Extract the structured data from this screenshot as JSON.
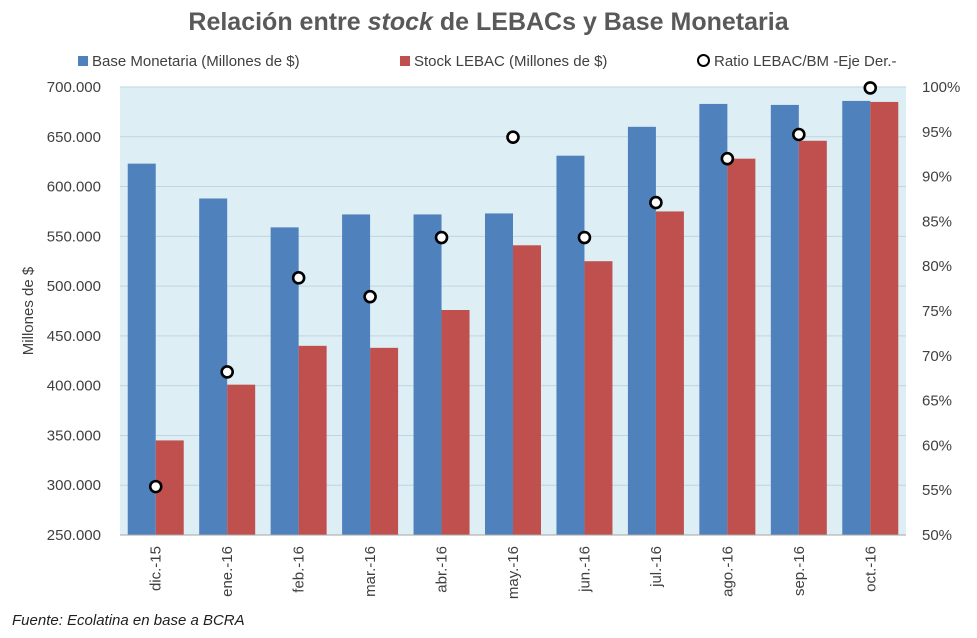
{
  "title": {
    "pre": "Relación entre ",
    "em": "stock",
    "post": " de LEBACs y Base Monetaria"
  },
  "legend": {
    "bm": "Base Monetaria (Millones de $)",
    "lebac": "Stock LEBAC (Millones de $)",
    "ratio": "Ratio LEBAC/BM -Eje Der.-"
  },
  "source": "Fuente: Ecolatina en base a BCRA",
  "colors": {
    "bm": "#4f81bd",
    "lebac": "#c0504d",
    "plot_bg": "#ddeef4",
    "grid": "#bfd6e0",
    "marker_stroke": "#000000",
    "marker_fill": "#ffffff"
  },
  "chart_data": {
    "type": "bar",
    "title": "Relación entre stock de LEBACs y Base Monetaria",
    "categories": [
      "dic.-15",
      "ene.-16",
      "feb.-16",
      "mar.-16",
      "abr.-16",
      "may.-16",
      "jun.-16",
      "jul.-16",
      "ago.-16",
      "sep.-16",
      "oct.-16"
    ],
    "series": [
      {
        "name": "Base Monetaria (Millones de $)",
        "type": "bar",
        "axis": "left",
        "values": [
          623000,
          588000,
          559000,
          572000,
          572000,
          573000,
          631000,
          660000,
          683000,
          682000,
          686000
        ]
      },
      {
        "name": "Stock LEBAC (Millones de $)",
        "type": "bar",
        "axis": "left",
        "values": [
          345000,
          401000,
          440000,
          438000,
          476000,
          541000,
          525000,
          575000,
          628000,
          646000,
          685000
        ]
      },
      {
        "name": "Ratio LEBAC/BM -Eje Der.-",
        "type": "scatter",
        "axis": "right",
        "values": [
          55.4,
          68.2,
          78.7,
          76.6,
          83.2,
          94.4,
          83.2,
          87.1,
          92.0,
          94.7,
          99.9
        ]
      }
    ],
    "ylabel": "Millones de $",
    "ylim": [
      250000,
      700000
    ],
    "yticks": [
      "250.000",
      "300.000",
      "350.000",
      "400.000",
      "450.000",
      "500.000",
      "550.000",
      "600.000",
      "650.000",
      "700.000"
    ],
    "y2lim": [
      50,
      100
    ],
    "y2ticks": [
      "50%",
      "55%",
      "60%",
      "65%",
      "70%",
      "75%",
      "80%",
      "85%",
      "90%",
      "95%",
      "100%"
    ],
    "grid": true,
    "legend_position": "top"
  }
}
